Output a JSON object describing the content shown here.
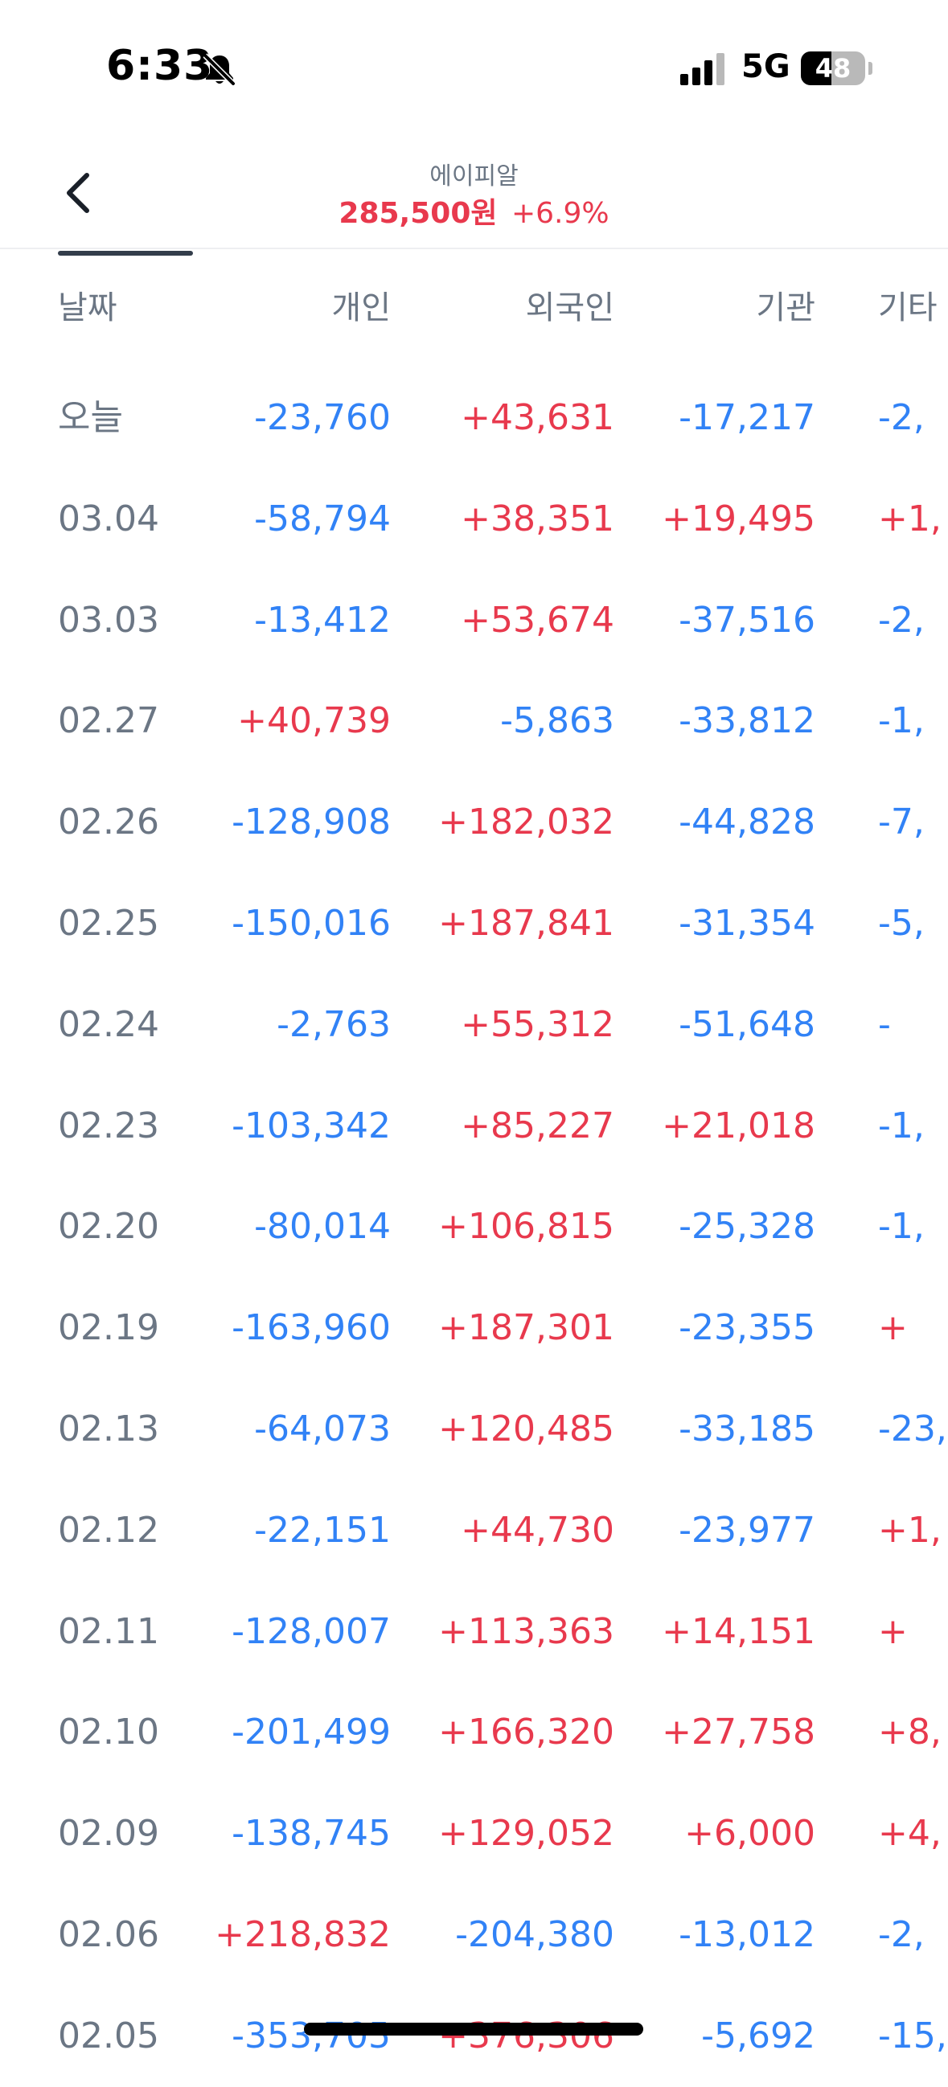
{
  "status_bar": {
    "time": "6:33",
    "network": "5G",
    "battery_level": "48",
    "battery_fraction": 0.48,
    "icons": [
      "bell-slash-icon",
      "signal-bars-icon",
      "battery-icon"
    ]
  },
  "header": {
    "back_icon": "chevron-left-icon",
    "stock_name": "에이피알",
    "price": "285,500원",
    "change": "+6.9%"
  },
  "colors": {
    "positive": "#e8394d",
    "negative": "#3182f6",
    "muted": "#6b7684"
  },
  "table": {
    "columns": [
      "날짜",
      "개인",
      "외국인",
      "기관",
      "기타"
    ],
    "rows": [
      {
        "date": "오늘",
        "individual": "-23,760",
        "foreign": "+43,631",
        "institution": "-17,217",
        "other": "-2,"
      },
      {
        "date": "03.04",
        "individual": "-58,794",
        "foreign": "+38,351",
        "institution": "+19,495",
        "other": "+1,"
      },
      {
        "date": "03.03",
        "individual": "-13,412",
        "foreign": "+53,674",
        "institution": "-37,516",
        "other": "-2,"
      },
      {
        "date": "02.27",
        "individual": "+40,739",
        "foreign": "-5,863",
        "institution": "-33,812",
        "other": "-1,"
      },
      {
        "date": "02.26",
        "individual": "-128,908",
        "foreign": "+182,032",
        "institution": "-44,828",
        "other": "-7,"
      },
      {
        "date": "02.25",
        "individual": "-150,016",
        "foreign": "+187,841",
        "institution": "-31,354",
        "other": "-5,"
      },
      {
        "date": "02.24",
        "individual": "-2,763",
        "foreign": "+55,312",
        "institution": "-51,648",
        "other": "-"
      },
      {
        "date": "02.23",
        "individual": "-103,342",
        "foreign": "+85,227",
        "institution": "+21,018",
        "other": "-1,"
      },
      {
        "date": "02.20",
        "individual": "-80,014",
        "foreign": "+106,815",
        "institution": "-25,328",
        "other": "-1,"
      },
      {
        "date": "02.19",
        "individual": "-163,960",
        "foreign": "+187,301",
        "institution": "-23,355",
        "other": "+"
      },
      {
        "date": "02.13",
        "individual": "-64,073",
        "foreign": "+120,485",
        "institution": "-33,185",
        "other": "-23,"
      },
      {
        "date": "02.12",
        "individual": "-22,151",
        "foreign": "+44,730",
        "institution": "-23,977",
        "other": "+1,"
      },
      {
        "date": "02.11",
        "individual": "-128,007",
        "foreign": "+113,363",
        "institution": "+14,151",
        "other": "+"
      },
      {
        "date": "02.10",
        "individual": "-201,499",
        "foreign": "+166,320",
        "institution": "+27,758",
        "other": "+8,"
      },
      {
        "date": "02.09",
        "individual": "-138,745",
        "foreign": "+129,052",
        "institution": "+6,000",
        "other": "+4,"
      },
      {
        "date": "02.06",
        "individual": "+218,832",
        "foreign": "-204,380",
        "institution": "-13,012",
        "other": "-2,"
      },
      {
        "date": "02.05",
        "individual": "-353,705",
        "foreign": "+376,306",
        "institution": "-5,692",
        "other": "-15,"
      }
    ]
  }
}
